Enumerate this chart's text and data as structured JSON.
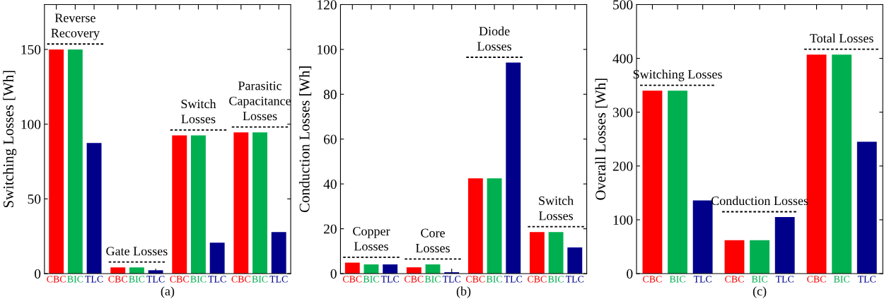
{
  "chart_data": [
    {
      "type": "bar",
      "xlabel": "(a)",
      "ylabel": "Switching Losses [Wh]",
      "categories": [
        "CBC",
        "BIC",
        "TLC",
        "CBC",
        "BIC",
        "TLC",
        "CBC",
        "BIC",
        "TLC",
        "CBC",
        "BIC",
        "TLC"
      ],
      "values": [
        150,
        150,
        87.4,
        4.1,
        4.1,
        2.2,
        92.5,
        92.5,
        20.7,
        94.5,
        94.5,
        27.8
      ],
      "colors": [
        "#ff0000",
        "#00b050",
        "#00008b",
        "#ff0000",
        "#00b050",
        "#00008b",
        "#ff0000",
        "#00b050",
        "#00008b",
        "#ff0000",
        "#00b050",
        "#00008b"
      ],
      "annotations": [
        "Reverse\nRecovery",
        "Gate Losses",
        "Switch\nLosses",
        "Parasitic\nCapacitance\nLosses"
      ],
      "ylim": [
        0,
        180
      ],
      "yticks": [
        0,
        50,
        100,
        150
      ]
    },
    {
      "type": "bar",
      "xlabel": "(b)",
      "ylabel": "Conduction Losses [Wh]",
      "categories": [
        "CBC",
        "BIC",
        "TLC",
        "CBC",
        "BIC",
        "TLC",
        "CBC",
        "BIC",
        "TLC",
        "CBC",
        "BIC",
        "TLC"
      ],
      "values": [
        4.9,
        4.1,
        4.1,
        2.8,
        4.1,
        0.6,
        42.5,
        42.5,
        94.1,
        18.5,
        18.5,
        11.7
      ],
      "colors": [
        "#ff0000",
        "#00b050",
        "#00008b",
        "#ff0000",
        "#00b050",
        "#00008b",
        "#ff0000",
        "#00b050",
        "#00008b",
        "#ff0000",
        "#00b050",
        "#00008b"
      ],
      "annotations": [
        "Copper\nLosses",
        "Core\nLosses",
        "Diode\nLosses",
        "Switch\nLosses"
      ],
      "ylim": [
        0,
        120
      ],
      "yticks": [
        0,
        20,
        40,
        60,
        80,
        100,
        120
      ]
    },
    {
      "type": "bar",
      "xlabel": "(c)",
      "ylabel": "Overall Losses [Wh]",
      "categories": [
        "CBC",
        "BIC",
        "TLC",
        "CBC",
        "BIC",
        "TLC",
        "CBC",
        "BIC",
        "TLC"
      ],
      "values": [
        340,
        340,
        136,
        62,
        62,
        105,
        407,
        407,
        245
      ],
      "colors": [
        "#ff0000",
        "#00b050",
        "#00008b",
        "#ff0000",
        "#00b050",
        "#00008b",
        "#ff0000",
        "#00b050",
        "#00008b"
      ],
      "annotations": [
        "Switching Losses",
        "Conduction Losses",
        "Total Losses"
      ],
      "ylim": [
        0,
        500
      ],
      "yticks": [
        0,
        100,
        200,
        300,
        400,
        500
      ]
    }
  ]
}
